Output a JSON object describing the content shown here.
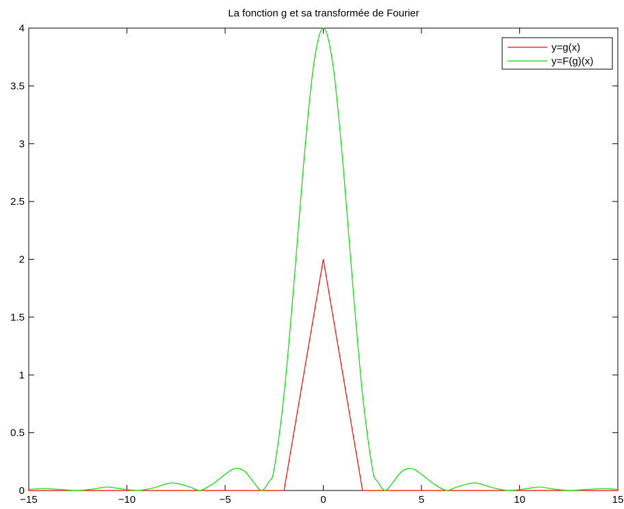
{
  "chart_data": {
    "type": "line",
    "title": "La fonction g et sa transformée de Fourier",
    "xlabel": "",
    "ylabel": "",
    "xlim": [
      -15,
      15
    ],
    "ylim": [
      0,
      4
    ],
    "xticks": [
      -15,
      -10,
      -5,
      0,
      5,
      10,
      15
    ],
    "xtick_labels": [
      "−15",
      "−10",
      "−5",
      "0",
      "5",
      "10",
      "15"
    ],
    "yticks": [
      0,
      0.5,
      1,
      1.5,
      2,
      2.5,
      3,
      3.5,
      4
    ],
    "ytick_labels": [
      "0",
      "0.5",
      "1",
      "1.5",
      "2",
      "2.5",
      "3",
      "3.5",
      "4"
    ],
    "grid": false,
    "legend_position": "top-right",
    "series": [
      {
        "name": "y=g(x)",
        "color": "#ff0000",
        "x": [
          -15,
          -2,
          0,
          2,
          15
        ],
        "y": [
          0,
          0,
          2,
          0,
          0
        ]
      },
      {
        "name": "y=F(g)(x)",
        "color": "#00dd00",
        "x": [
          -15,
          -14.25,
          -13.5,
          -12.57,
          -11.75,
          -11,
          -10.2,
          -9.42,
          -8.6,
          -7.7,
          -6.8,
          -6.28,
          -5.6,
          -5,
          -4.5,
          -4,
          -3.5,
          -3.14,
          -2.75,
          -2.5,
          -2,
          -1.5,
          -1,
          -0.5,
          0,
          0.5,
          1,
          1.5,
          2,
          2.5,
          2.75,
          3.14,
          3.5,
          4,
          4.5,
          5,
          5.6,
          6.28,
          6.8,
          7.7,
          8.6,
          9.42,
          10.2,
          11,
          11.75,
          12.57,
          13.5,
          14.25,
          15
        ],
        "y": [
          0.01,
          0.016,
          0.01,
          0,
          0.012,
          0.03,
          0.012,
          0,
          0.025,
          0.066,
          0.03,
          0,
          0.06,
          0.14,
          0.19,
          0.165,
          0.06,
          0,
          0.08,
          0.19,
          0.83,
          1.78,
          2.83,
          3.67,
          4,
          3.67,
          2.83,
          1.78,
          0.83,
          0.19,
          0.08,
          0,
          0.06,
          0.165,
          0.19,
          0.14,
          0.06,
          0,
          0.03,
          0.066,
          0.025,
          0,
          0.012,
          0.03,
          0.012,
          0,
          0.01,
          0.016,
          0.01
        ]
      }
    ]
  }
}
